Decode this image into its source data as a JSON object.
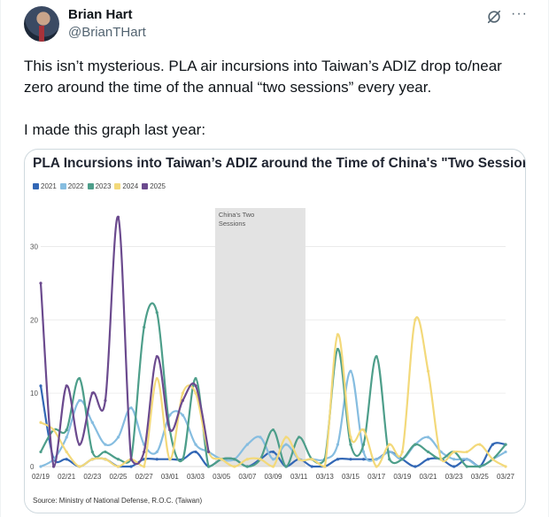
{
  "author": {
    "name": "Brian Hart",
    "handle": "@BrianTHart"
  },
  "icons": {
    "grok": "grok-icon",
    "more": "more-dots-icon"
  },
  "tweet": {
    "line1": "This isn’t mysterious. PLA air incursions into Taiwan’s ADIZ drop to/near zero around the time of the annual “two sessions” every year.",
    "line2": "I made this graph last year:"
  },
  "chart_data": {
    "type": "line",
    "title": "PLA Incursions into Taiwan’s ADIZ around the Time of China's \"Two Sessions\"",
    "x_ticks": [
      "02/19",
      "02/21",
      "02/23",
      "02/25",
      "02/27",
      "03/01",
      "03/03",
      "03/05",
      "03/07",
      "03/09",
      "03/11",
      "03/13",
      "03/15",
      "03/17",
      "03/19",
      "03/21",
      "03/23",
      "03/25",
      "03/27"
    ],
    "y_ticks": [
      0,
      10,
      20,
      30
    ],
    "ylim": [
      0,
      35
    ],
    "xlim": [
      0,
      36
    ],
    "shaded_region": {
      "label_line1": "China's Two",
      "label_line2": "Sessions",
      "x_start": 13.5,
      "x_end": 20.5
    },
    "legend_position": "top-left",
    "source": "Source: Ministry of National Defense, R.O.C. (Taiwan)",
    "series": [
      {
        "name": "2021",
        "color": "#3267b5",
        "values": [
          11,
          1,
          1,
          0,
          1,
          1,
          0,
          0,
          1,
          1,
          1,
          1,
          2,
          0,
          1,
          1,
          0,
          1,
          2,
          0,
          1,
          0,
          0,
          1,
          1,
          1,
          1,
          2,
          1,
          0,
          1,
          1,
          0,
          1,
          0,
          3,
          3
        ]
      },
      {
        "name": "2022",
        "color": "#86bde0",
        "values": [
          0,
          1,
          4,
          9,
          6,
          3,
          4,
          8,
          3,
          2,
          7,
          7,
          3,
          2,
          1,
          1,
          3,
          4,
          1,
          3,
          1,
          1,
          1,
          3,
          13,
          2,
          1,
          2,
          1,
          3,
          4,
          2,
          1,
          1,
          0,
          1,
          2
        ]
      },
      {
        "name": "2023",
        "color": "#4d9e8a",
        "values": [
          2,
          5,
          5,
          12,
          2,
          2,
          1,
          1,
          19,
          21,
          5,
          1,
          12,
          0,
          1,
          1,
          0,
          1,
          5,
          0,
          4,
          1,
          1,
          16,
          3,
          3,
          15,
          1,
          1,
          3,
          2,
          1,
          2,
          0,
          0,
          1,
          3
        ]
      },
      {
        "name": "2024",
        "color": "#f3d97a",
        "values": [
          6,
          5,
          2,
          0,
          1,
          1,
          0,
          1,
          0,
          12,
          1,
          10,
          10,
          2,
          1,
          0,
          1,
          1,
          0,
          4,
          1,
          1,
          0,
          18,
          4,
          5,
          0,
          3,
          2,
          20,
          13,
          1,
          2,
          2,
          3,
          1,
          0
        ]
      },
      {
        "name": "2025",
        "color": "#6b4a8e",
        "values": [
          25,
          0,
          11,
          3,
          10,
          9,
          34,
          1,
          2,
          15,
          5,
          9,
          11,
          2
        ]
      }
    ]
  }
}
